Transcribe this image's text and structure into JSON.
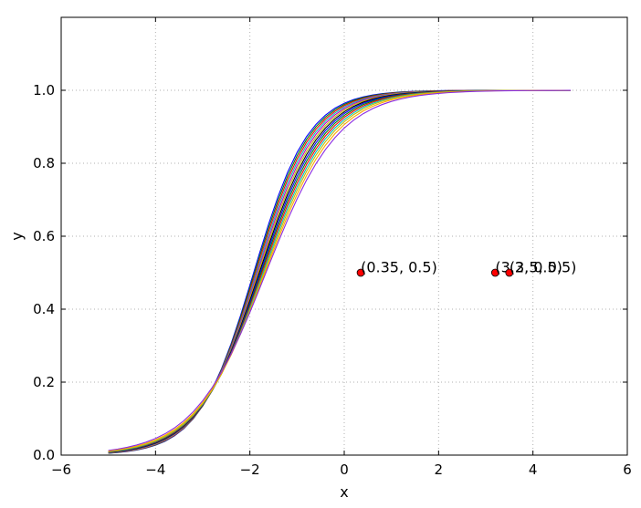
{
  "chart_data": {
    "type": "line",
    "title": "",
    "xlabel": "x",
    "ylabel": "y",
    "xlim": [
      -6,
      6
    ],
    "ylim": [
      0,
      1.2
    ],
    "xticks": [
      -6,
      -4,
      -2,
      0,
      2,
      4,
      6
    ],
    "yticks": [
      0.0,
      0.2,
      0.4,
      0.6,
      0.8,
      1.0
    ],
    "xtick_labels": [
      "−6",
      "−4",
      "−2",
      "0",
      "2",
      "4",
      "6"
    ],
    "ytick_labels": [
      "0.0",
      "0.2",
      "0.4",
      "0.6",
      "0.8",
      "1.0"
    ],
    "grid": true,
    "x_range": [
      -5.0,
      4.8
    ],
    "x_step": 0.2,
    "curve": "1 / (1 + exp(-k * (x - x0)))",
    "series": [
      {
        "color": "#0000ff",
        "k": 1.72,
        "x0": -1.92
      },
      {
        "color": "#008000",
        "k": 1.69,
        "x0": -1.9
      },
      {
        "color": "#ff0000",
        "k": 1.66,
        "x0": -1.88
      },
      {
        "color": "#00bfbf",
        "k": 1.63,
        "x0": -1.86
      },
      {
        "color": "#bf00bf",
        "k": 1.6,
        "x0": -1.84
      },
      {
        "color": "#bfbf00",
        "k": 1.57,
        "x0": -1.82
      },
      {
        "color": "#000000",
        "k": 1.54,
        "x0": -1.8
      },
      {
        "color": "#0000ff",
        "k": 1.51,
        "x0": -1.78
      },
      {
        "color": "#008000",
        "k": 1.48,
        "x0": -1.76
      },
      {
        "color": "#ff0000",
        "k": 1.45,
        "x0": -1.74
      },
      {
        "color": "#00bfbf",
        "k": 1.42,
        "x0": -1.72
      },
      {
        "color": "#bfbf00",
        "k": 1.39,
        "x0": -1.7
      },
      {
        "color": "#ffa500",
        "k": 1.35,
        "x0": -1.68
      },
      {
        "color": "#8a2be2",
        "k": 1.3,
        "x0": -1.66
      }
    ],
    "points": [
      {
        "x": 0.35,
        "y": 0.5,
        "label": "(0.35, 0.5)"
      },
      {
        "x": 3.2,
        "y": 0.5,
        "label": "(3.2, 0.5)"
      },
      {
        "x": 3.5,
        "y": 0.5,
        "label": "(3.5, 0.5)"
      }
    ],
    "point_color": "#ff0000"
  }
}
